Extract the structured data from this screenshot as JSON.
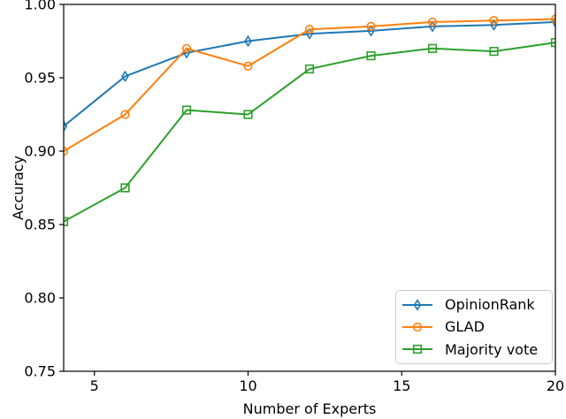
{
  "chart_data": {
    "type": "line",
    "title": "",
    "xlabel": "Number of Experts",
    "ylabel": "Accuracy",
    "xlim": [
      4,
      20
    ],
    "ylim": [
      0.75,
      1.0
    ],
    "xticks": [
      5,
      10,
      15,
      20
    ],
    "yticks": [
      0.75,
      0.8,
      0.85,
      0.9,
      0.95,
      1.0
    ],
    "grid": false,
    "legend_position": "lower right",
    "x": [
      4,
      6,
      8,
      10,
      12,
      14,
      16,
      18,
      20
    ],
    "series": [
      {
        "name": "OpinionRank",
        "color": "#1f77b4",
        "marker": "thin-diamond",
        "values": [
          0.917,
          0.951,
          0.967,
          0.975,
          0.98,
          0.982,
          0.985,
          0.986,
          0.988
        ]
      },
      {
        "name": "GLAD",
        "color": "#ff7f0e",
        "marker": "circle",
        "values": [
          0.9,
          0.925,
          0.97,
          0.958,
          0.983,
          0.985,
          0.988,
          0.989,
          0.99
        ]
      },
      {
        "name": "Majority vote",
        "color": "#2ca02c",
        "marker": "square",
        "values": [
          0.852,
          0.875,
          0.928,
          0.925,
          0.956,
          0.965,
          0.97,
          0.968,
          0.974
        ]
      }
    ]
  }
}
